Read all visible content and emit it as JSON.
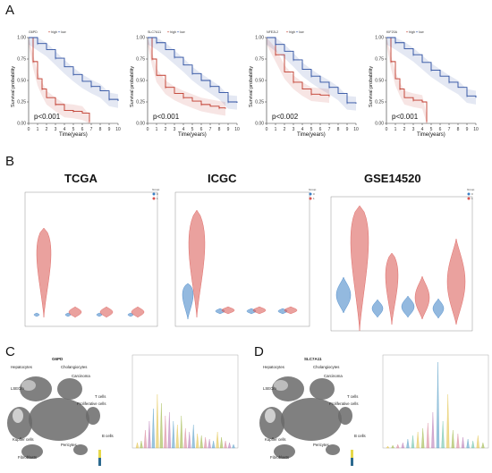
{
  "panels": {
    "A": "A",
    "B": "B",
    "C": "C",
    "D": "D"
  },
  "km": {
    "xlabel": "Time(years)",
    "ylabel": "Survival probability",
    "legend_high": "high",
    "legend_low": "low",
    "plots": [
      {
        "gene": "G6PD",
        "p": "p<0.001"
      },
      {
        "gene": "SLC7A11",
        "p": "p<0.001"
      },
      {
        "gene": "NFE2L2",
        "p": "p<0.002"
      },
      {
        "gene": "KIF20A",
        "p": "p<0.001"
      }
    ],
    "colors": {
      "high": "#c0392b",
      "low": "#2b4ea0"
    }
  },
  "violins": {
    "titles": [
      "TCGA",
      "ICGC",
      "GSE14520"
    ],
    "colors": {
      "group0": "#3b7fc4",
      "group1": "#d9534f"
    }
  },
  "tsne": {
    "C": {
      "gene": "G6PD"
    },
    "D": {
      "gene": "SLC7A11"
    },
    "cluster_labels": [
      "Hepatocytes",
      "Cholangiocytes",
      "Carcinoma",
      "Proliferative cells",
      "Kupffer cells",
      "Pericytes",
      "Fibroblasts",
      "B cells",
      "T cells",
      "LSECm"
    ]
  },
  "chart_data": [
    {
      "type": "line",
      "title": "G6PD",
      "xlabel": "Time(years)",
      "ylabel": "Survival probability",
      "xlim": [
        0,
        10
      ],
      "ylim": [
        0,
        1
      ],
      "series": [
        {
          "name": "high",
          "x": [
            0,
            0.5,
            1,
            1.5,
            2,
            3,
            4,
            5,
            6,
            6.8
          ],
          "values": [
            1,
            0.72,
            0.52,
            0.4,
            0.3,
            0.22,
            0.15,
            0.14,
            0.12,
            0.02
          ]
        },
        {
          "name": "low",
          "x": [
            0,
            1,
            2,
            3,
            4,
            5,
            6,
            7,
            8,
            9,
            10
          ],
          "values": [
            1,
            0.93,
            0.86,
            0.76,
            0.66,
            0.57,
            0.49,
            0.43,
            0.38,
            0.28,
            0.26
          ]
        }
      ]
    },
    {
      "type": "line",
      "title": "SLC7A11",
      "xlabel": "Time(years)",
      "ylabel": "Survival probability",
      "xlim": [
        0,
        10
      ],
      "ylim": [
        0,
        1
      ],
      "series": [
        {
          "name": "high",
          "x": [
            0,
            0.5,
            1,
            2,
            3,
            4,
            5,
            6,
            7,
            8,
            8.7
          ],
          "values": [
            1,
            0.75,
            0.56,
            0.42,
            0.35,
            0.3,
            0.26,
            0.22,
            0.2,
            0.18,
            0.17
          ]
        },
        {
          "name": "low",
          "x": [
            0,
            1,
            2,
            3,
            4,
            5,
            6,
            7,
            8,
            9,
            10
          ],
          "values": [
            1,
            0.94,
            0.86,
            0.77,
            0.68,
            0.58,
            0.5,
            0.43,
            0.36,
            0.25,
            0.24
          ]
        }
      ]
    },
    {
      "type": "line",
      "title": "NFE2L2",
      "xlabel": "Time(years)",
      "ylabel": "Survival probability",
      "xlim": [
        0,
        10
      ],
      "ylim": [
        0,
        1
      ],
      "series": [
        {
          "name": "high",
          "x": [
            0,
            1,
            2,
            3,
            4,
            5,
            6,
            7
          ],
          "values": [
            1,
            0.8,
            0.6,
            0.48,
            0.4,
            0.34,
            0.33,
            0.32
          ]
        },
        {
          "name": "low",
          "x": [
            0,
            1,
            2,
            3,
            4,
            5,
            6,
            7,
            8,
            9,
            10
          ],
          "values": [
            1,
            0.92,
            0.84,
            0.74,
            0.63,
            0.55,
            0.48,
            0.42,
            0.35,
            0.24,
            0.23
          ]
        }
      ]
    },
    {
      "type": "line",
      "title": "KIF20A",
      "xlabel": "Time(years)",
      "ylabel": "Survival probability",
      "xlim": [
        0,
        10
      ],
      "ylim": [
        0,
        1
      ],
      "series": [
        {
          "name": "high",
          "x": [
            0,
            0.5,
            1,
            1.5,
            2,
            3,
            4,
            4.5
          ],
          "values": [
            1,
            0.72,
            0.52,
            0.4,
            0.3,
            0.27,
            0.25,
            0.02
          ]
        },
        {
          "name": "low",
          "x": [
            0,
            1,
            2,
            3,
            4,
            5,
            6,
            7,
            8,
            9,
            10
          ],
          "values": [
            1,
            0.94,
            0.87,
            0.8,
            0.71,
            0.62,
            0.55,
            0.48,
            0.42,
            0.32,
            0.3
          ]
        }
      ]
    }
  ]
}
